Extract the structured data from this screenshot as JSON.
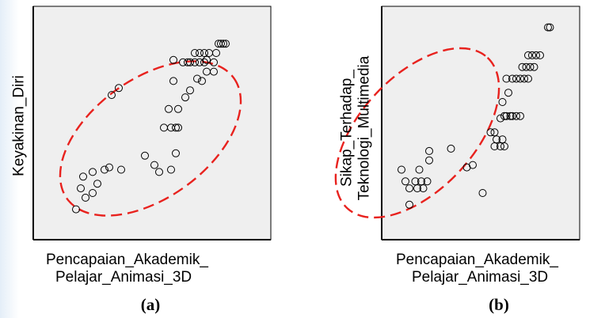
{
  "chart_data": [
    {
      "type": "scatter",
      "title": "",
      "xlabel": "Pencapaian_Akademik_\nPelajar_Animasi_3D",
      "ylabel": "Keyakinan_Diri",
      "caption": "(a)",
      "xlim": [
        0,
        100
      ],
      "ylim": [
        0,
        100
      ],
      "grid": false,
      "annotation": "dashed red ellipse enclosing the points",
      "points": [
        [
          18,
          13
        ],
        [
          22,
          18
        ],
        [
          25,
          20
        ],
        [
          20,
          22
        ],
        [
          27,
          24
        ],
        [
          21,
          27
        ],
        [
          25,
          29
        ],
        [
          30,
          30
        ],
        [
          32,
          31
        ],
        [
          37,
          30
        ],
        [
          33,
          62
        ],
        [
          36,
          65
        ],
        [
          47,
          36
        ],
        [
          51,
          32
        ],
        [
          53,
          29
        ],
        [
          58,
          30
        ],
        [
          60,
          37
        ],
        [
          55,
          48
        ],
        [
          58,
          48
        ],
        [
          60,
          48
        ],
        [
          61,
          48
        ],
        [
          57,
          56
        ],
        [
          61,
          56
        ],
        [
          59,
          68
        ],
        [
          64,
          61
        ],
        [
          66,
          64
        ],
        [
          69,
          69
        ],
        [
          59,
          77
        ],
        [
          63,
          76
        ],
        [
          65,
          76
        ],
        [
          66,
          76
        ],
        [
          68,
          76
        ],
        [
          70,
          76
        ],
        [
          72,
          76
        ],
        [
          73,
          77
        ],
        [
          76,
          76
        ],
        [
          68,
          80
        ],
        [
          70,
          80
        ],
        [
          72,
          80
        ],
        [
          74,
          80
        ],
        [
          77,
          80
        ],
        [
          73,
          72
        ],
        [
          76,
          72
        ],
        [
          71,
          68
        ],
        [
          78,
          84
        ],
        [
          79,
          84
        ],
        [
          80,
          84
        ],
        [
          81,
          84
        ]
      ]
    },
    {
      "type": "scatter",
      "title": "",
      "xlabel": "Pencapaian_Akademik_\nPelajar_Animasi_3D",
      "ylabel": "Sikap_Terhadap_\nTeknologi_Multimedia",
      "caption": "(b)",
      "xlim": [
        0,
        100
      ],
      "ylim": [
        0,
        100
      ],
      "grid": false,
      "annotation": "dashed red ellipse enclosing the points",
      "points": [
        [
          10,
          30
        ],
        [
          12,
          25
        ],
        [
          14,
          22
        ],
        [
          17,
          25
        ],
        [
          18,
          22
        ],
        [
          20,
          25
        ],
        [
          21,
          22
        ],
        [
          23,
          25
        ],
        [
          19,
          30
        ],
        [
          14,
          15
        ],
        [
          24,
          38
        ],
        [
          24,
          34
        ],
        [
          35,
          39
        ],
        [
          43,
          31
        ],
        [
          46,
          32
        ],
        [
          51,
          20
        ],
        [
          55,
          46
        ],
        [
          57,
          46
        ],
        [
          57,
          40
        ],
        [
          58,
          43
        ],
        [
          60,
          40
        ],
        [
          61,
          43
        ],
        [
          62,
          40
        ],
        [
          60,
          52
        ],
        [
          62,
          53
        ],
        [
          63,
          53
        ],
        [
          65,
          53
        ],
        [
          66,
          53
        ],
        [
          68,
          53
        ],
        [
          70,
          53
        ],
        [
          61,
          59
        ],
        [
          64,
          63
        ],
        [
          63,
          69
        ],
        [
          66,
          69
        ],
        [
          68,
          69
        ],
        [
          70,
          69
        ],
        [
          72,
          69
        ],
        [
          74,
          69
        ],
        [
          71,
          74
        ],
        [
          73,
          74
        ],
        [
          75,
          74
        ],
        [
          77,
          74
        ],
        [
          74,
          79
        ],
        [
          76,
          79
        ],
        [
          78,
          79
        ],
        [
          80,
          79
        ],
        [
          84,
          91
        ],
        [
          85,
          91
        ]
      ]
    }
  ]
}
